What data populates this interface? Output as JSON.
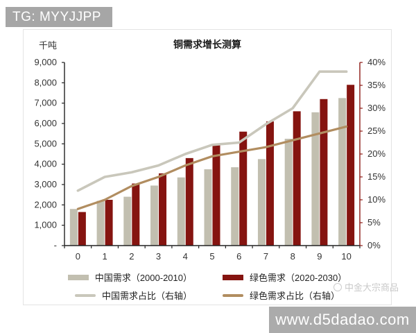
{
  "badge": {
    "text": "TG: MYYJJPP"
  },
  "watermark": {
    "brand": "中金大宗商品"
  },
  "banner": {
    "url": "www.d5dadao.com"
  },
  "chart_data": {
    "type": "bar+line combo",
    "title": "铜需求增长测算",
    "unit_label": "千吨",
    "categories": [
      "0",
      "1",
      "2",
      "3",
      "4",
      "5",
      "6",
      "7",
      "8",
      "9",
      "10"
    ],
    "left_axis": {
      "min": 0,
      "max": 9000,
      "step": 1000,
      "zero_label": "-",
      "unit": "千吨"
    },
    "right_axis": {
      "min": 0,
      "max": 40,
      "step": 5,
      "suffix": "%"
    },
    "grid": false,
    "legend_position": "bottom",
    "series": [
      {
        "name": "中国需求（2000-2010）",
        "type": "bar",
        "axis": "left",
        "color": "#c2bfb0",
        "values": [
          1800,
          2200,
          2400,
          2950,
          3350,
          3750,
          3850,
          4250,
          5250,
          6550,
          7250
        ]
      },
      {
        "name": "绿色需求（2020-2030）",
        "type": "bar",
        "axis": "left",
        "color": "#851410",
        "values": [
          1650,
          2250,
          3050,
          3550,
          4300,
          5000,
          5600,
          6100,
          6600,
          7200,
          7900
        ]
      },
      {
        "name": "中国需求占比（右轴）",
        "type": "line",
        "axis": "right",
        "color": "#c9c7bb",
        "values": [
          12,
          15,
          16,
          17.5,
          20,
          22,
          22.5,
          26.5,
          30,
          38,
          38
        ]
      },
      {
        "name": "绿色需求占比（右轴）",
        "type": "line",
        "axis": "right",
        "color": "#b18d60",
        "values": [
          8,
          10,
          13,
          15,
          17.5,
          19.5,
          20.5,
          21.5,
          23,
          24.5,
          26
        ]
      }
    ],
    "spine_colors": {
      "left": "#222222",
      "bottom": "#222222",
      "right": "#8b1812"
    }
  }
}
